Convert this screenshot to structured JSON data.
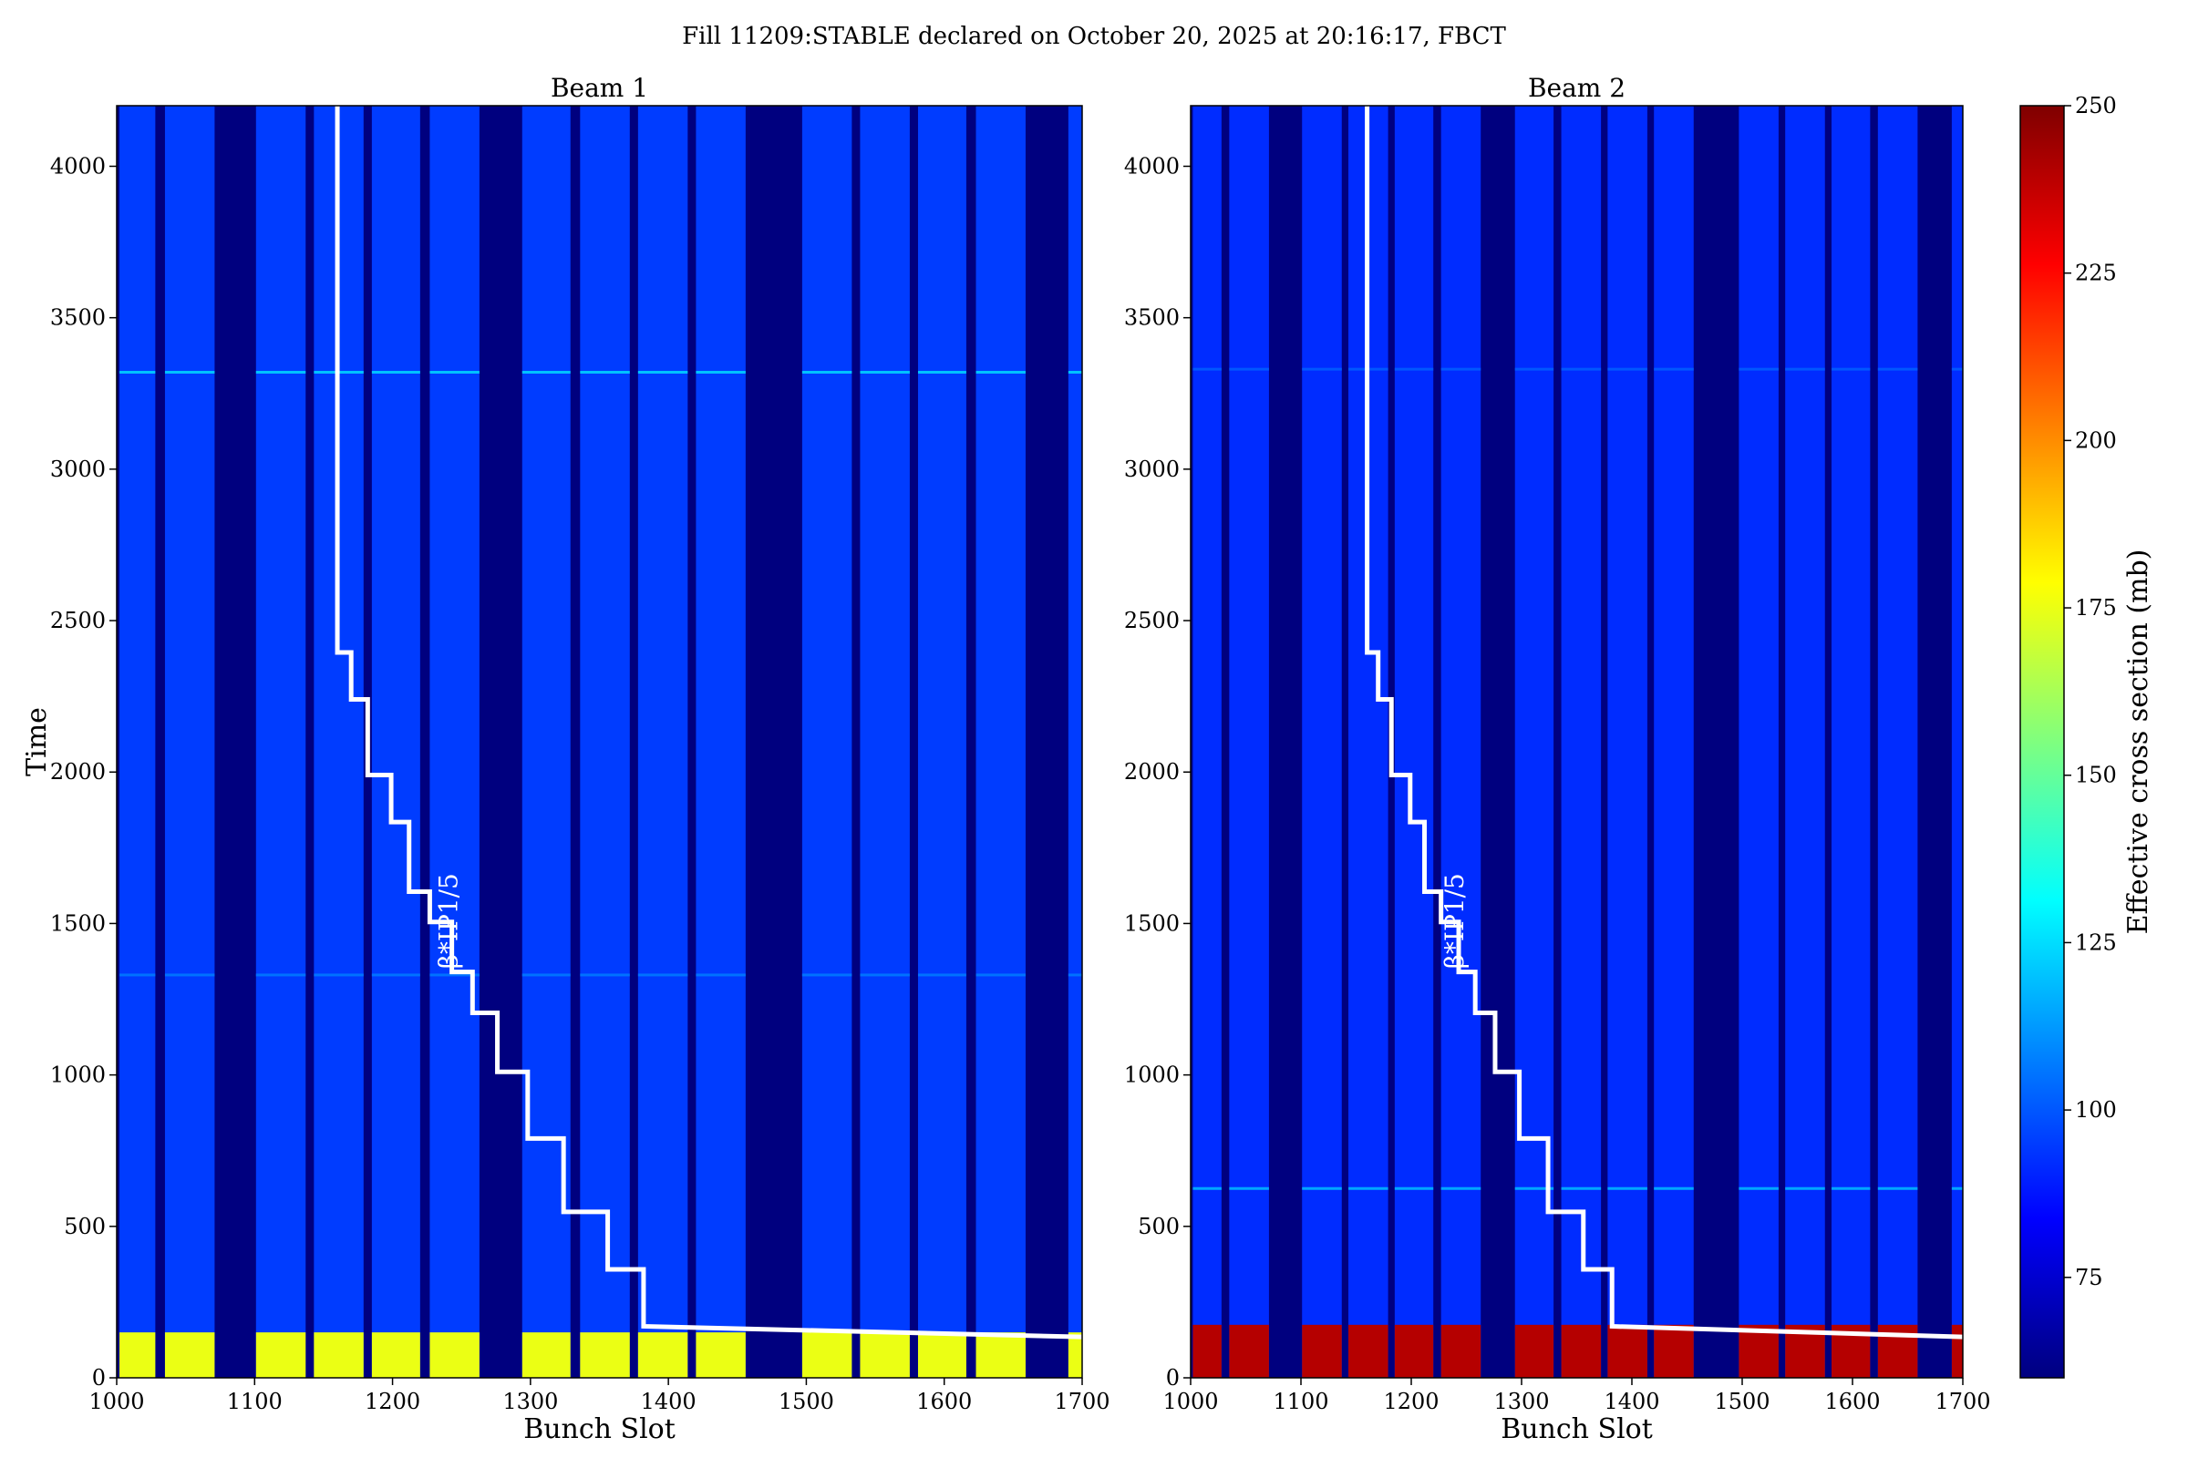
{
  "figure": {
    "suptitle": "Fill 11209:STABLE declared on October 20, 2025 at 20:16:17, FBCT"
  },
  "colormap": {
    "name": "jet",
    "stops": [
      "#00007f",
      "#0000ff",
      "#007fff",
      "#00ffff",
      "#7fff7f",
      "#ffff00",
      "#ff7f00",
      "#ff0000",
      "#7f0000"
    ]
  },
  "chart_data": [
    {
      "type": "heatmap",
      "title": "Beam 1",
      "xlabel": "Bunch Slot",
      "ylabel": "Time",
      "xlim": [
        1000,
        1700
      ],
      "ylim": [
        0,
        4200
      ],
      "xticks": [
        "1000",
        "1100",
        "1200",
        "1300",
        "1400",
        "1500",
        "1600",
        "1700"
      ],
      "yticks": [
        "0",
        "500",
        "1000",
        "1500",
        "2000",
        "2500",
        "3000",
        "3500",
        "4000"
      ],
      "filled_bunch_trains": [
        [
          1002,
          1028
        ],
        [
          1035,
          1071
        ],
        [
          1101,
          1137
        ],
        [
          1143,
          1179
        ],
        [
          1185,
          1220
        ],
        [
          1227,
          1263
        ],
        [
          1294,
          1329
        ],
        [
          1336,
          1372
        ],
        [
          1378,
          1414
        ],
        [
          1420,
          1456
        ],
        [
          1497,
          1533
        ],
        [
          1539,
          1575
        ],
        [
          1581,
          1616
        ],
        [
          1623,
          1659
        ],
        [
          1690,
          1700
        ]
      ],
      "band_value_mb": 95,
      "early_band_max_time": 150,
      "early_band_value_mb": 175,
      "horizontal_streaks": [
        {
          "time": 3320,
          "value_mb": 120
        },
        {
          "time": 1330,
          "value_mb": 105
        }
      ],
      "overlay_label": "β*IP1/5",
      "overlay_step": {
        "x": [
          1160,
          1160,
          1170,
          1170,
          1182,
          1182,
          1199,
          1199,
          1212,
          1212,
          1227,
          1227,
          1243,
          1243,
          1258,
          1258,
          1276,
          1276,
          1298,
          1298,
          1324,
          1324,
          1356,
          1356,
          1382,
          1382,
          1700
        ],
        "y": [
          4200,
          2395,
          2395,
          2240,
          2240,
          1990,
          1990,
          1835,
          1835,
          1605,
          1605,
          1505,
          1505,
          1340,
          1340,
          1205,
          1205,
          1010,
          1010,
          790,
          790,
          548,
          548,
          358,
          358,
          170,
          135
        ]
      }
    },
    {
      "type": "heatmap",
      "title": "Beam 2",
      "xlabel": "Bunch Slot",
      "ylabel": "",
      "xlim": [
        1000,
        1700
      ],
      "ylim": [
        0,
        4200
      ],
      "xticks": [
        "1000",
        "1100",
        "1200",
        "1300",
        "1400",
        "1500",
        "1600",
        "1700"
      ],
      "yticks": [
        "0",
        "500",
        "1000",
        "1500",
        "2000",
        "2500",
        "3000",
        "3500",
        "4000"
      ],
      "filled_bunch_trains": [
        [
          1002,
          1028
        ],
        [
          1035,
          1071
        ],
        [
          1101,
          1137
        ],
        [
          1143,
          1179
        ],
        [
          1185,
          1220
        ],
        [
          1227,
          1263
        ],
        [
          1294,
          1329
        ],
        [
          1336,
          1372
        ],
        [
          1378,
          1414
        ],
        [
          1420,
          1456
        ],
        [
          1497,
          1533
        ],
        [
          1539,
          1575
        ],
        [
          1581,
          1616
        ],
        [
          1623,
          1659
        ],
        [
          1690,
          1700
        ]
      ],
      "band_value_mb": 92,
      "early_band_max_time": 175,
      "early_band_value_mb": 240,
      "horizontal_streaks": [
        {
          "time": 625,
          "value_mb": 115
        },
        {
          "time": 3330,
          "value_mb": 100
        }
      ],
      "overlay_label": "β*IP1/5",
      "overlay_step": {
        "x": [
          1160,
          1160,
          1170,
          1170,
          1182,
          1182,
          1199,
          1199,
          1212,
          1212,
          1227,
          1227,
          1243,
          1243,
          1258,
          1258,
          1276,
          1276,
          1298,
          1298,
          1324,
          1324,
          1356,
          1356,
          1382,
          1382,
          1700
        ],
        "y": [
          4200,
          2395,
          2395,
          2240,
          2240,
          1990,
          1990,
          1835,
          1835,
          1605,
          1605,
          1505,
          1505,
          1340,
          1340,
          1205,
          1205,
          1010,
          1010,
          790,
          790,
          548,
          548,
          358,
          358,
          170,
          135
        ]
      }
    },
    {
      "type": "colorbar",
      "label": "Effective cross section (mb)",
      "range": [
        60,
        250
      ],
      "ticks": [
        "75",
        "100",
        "125",
        "150",
        "175",
        "200",
        "225",
        "250"
      ]
    }
  ]
}
